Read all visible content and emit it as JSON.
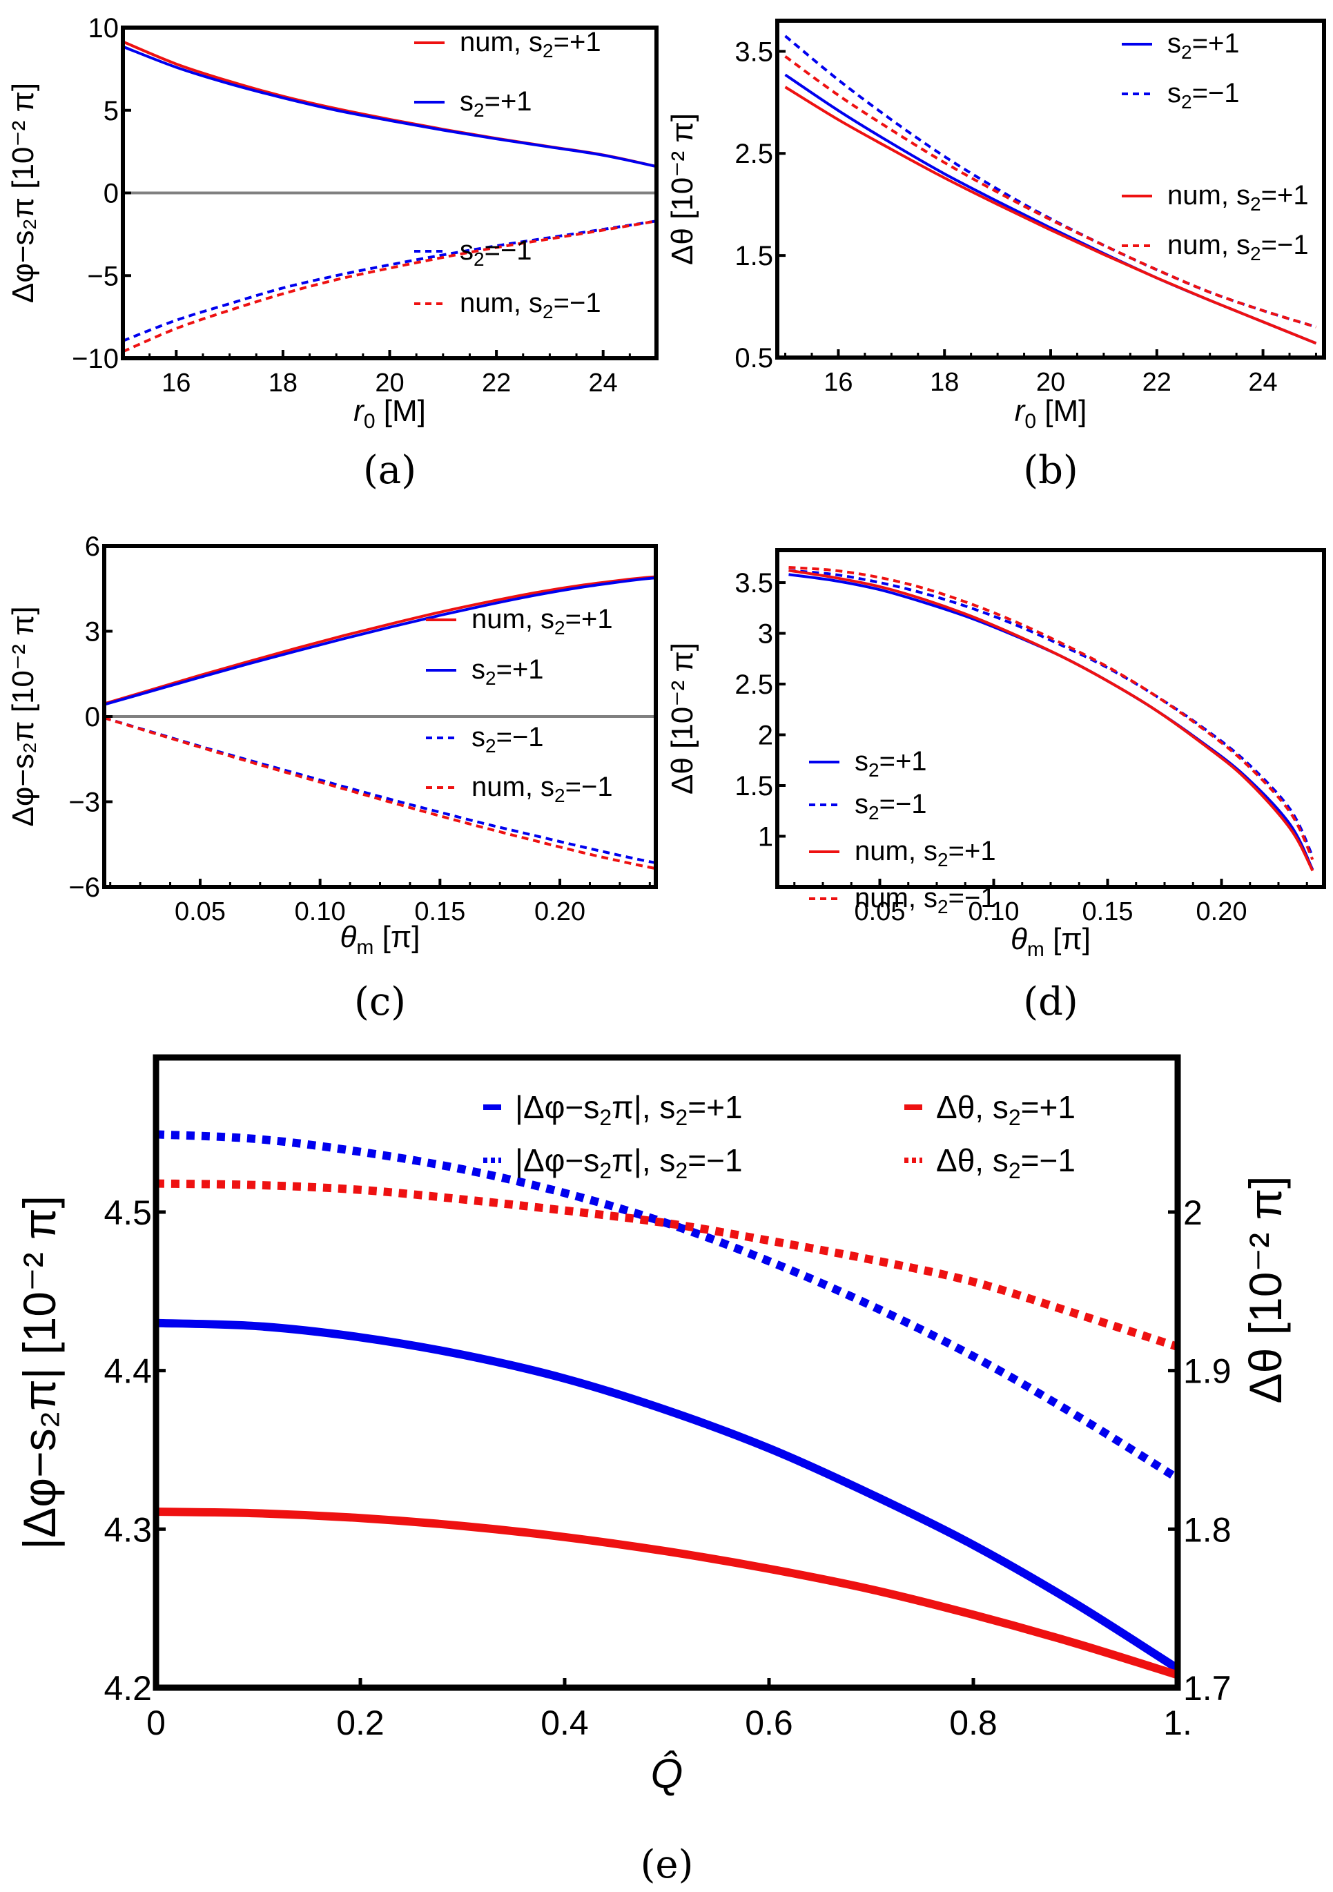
{
  "colors": {
    "blue": "#0000ee",
    "red": "#ee1111",
    "zero_line": "#808080",
    "frame": "#000000"
  },
  "chart_data": [
    {
      "id": "a",
      "type": "line",
      "caption": "(a)",
      "xlabel": "r0 [M]",
      "xlabel_parts": {
        "var": "r",
        "sub": "0",
        "unit": " [M]"
      },
      "ylabel": "Δφ−s2π [10^−2 π]",
      "xlim": [
        15,
        25
      ],
      "ylim": [
        -10,
        10
      ],
      "xticks": [
        16,
        18,
        20,
        22,
        24
      ],
      "xtick_labels": [
        "16",
        "18",
        "20",
        "22",
        "24"
      ],
      "yticks": [
        -10,
        -5,
        0,
        5,
        10
      ],
      "ytick_labels": [
        "−10",
        "−5",
        "0",
        "5",
        "10"
      ],
      "zero_line": true,
      "legend_position": "right",
      "series": [
        {
          "name": "num, s2=+1",
          "color": "red",
          "style": "solid",
          "x": [
            15,
            16,
            17,
            18,
            19,
            20,
            21,
            22,
            23,
            24,
            25
          ],
          "y": [
            9.15,
            7.8,
            6.75,
            5.85,
            5.1,
            4.45,
            3.85,
            3.3,
            2.8,
            2.3,
            1.6
          ]
        },
        {
          "name": "s2=+1",
          "color": "blue",
          "style": "solid",
          "x": [
            15,
            16,
            17,
            18,
            19,
            20,
            21,
            22,
            23,
            24,
            25
          ],
          "y": [
            8.85,
            7.6,
            6.6,
            5.75,
            5.0,
            4.38,
            3.8,
            3.27,
            2.78,
            2.28,
            1.6
          ]
        },
        {
          "name": "s2=−1",
          "color": "blue",
          "style": "dashed",
          "x": [
            15,
            16,
            17,
            18,
            19,
            20,
            21,
            22,
            23,
            24,
            25
          ],
          "y": [
            -8.95,
            -7.7,
            -6.7,
            -5.75,
            -5.0,
            -4.35,
            -3.75,
            -3.2,
            -2.7,
            -2.2,
            -1.7
          ]
        },
        {
          "name": "num, s2=−1",
          "color": "red",
          "style": "dashed",
          "x": [
            15,
            16,
            17,
            18,
            19,
            20,
            21,
            22,
            23,
            24,
            25
          ],
          "y": [
            -9.6,
            -8.2,
            -7.1,
            -6.1,
            -5.25,
            -4.55,
            -3.9,
            -3.3,
            -2.78,
            -2.25,
            -1.7
          ]
        }
      ],
      "legend": [
        {
          "label": "num, s",
          "sub": "2",
          "tail": "=+1",
          "color": "red",
          "style": "solid"
        },
        {
          "label": "s",
          "sub": "2",
          "tail": "=+1",
          "color": "blue",
          "style": "solid"
        },
        {
          "label": "s",
          "sub": "2",
          "tail": "=−1",
          "color": "blue",
          "style": "dashed"
        },
        {
          "label": "num, s",
          "sub": "2",
          "tail": "=−1",
          "color": "red",
          "style": "dashed"
        }
      ]
    },
    {
      "id": "b",
      "type": "line",
      "caption": "(b)",
      "xlabel": "r0 [M]",
      "xlabel_parts": {
        "var": "r",
        "sub": "0",
        "unit": " [M]"
      },
      "ylabel": "Δθ [10^−2 π]",
      "xlim": [
        14.85,
        25.15
      ],
      "ylim": [
        0.5,
        3.8
      ],
      "xticks": [
        16,
        18,
        20,
        22,
        24
      ],
      "xtick_labels": [
        "16",
        "18",
        "20",
        "22",
        "24"
      ],
      "yticks": [
        0.5,
        1.5,
        2.5,
        3.5
      ],
      "ytick_labels": [
        "0.5",
        "1.5",
        "2.5",
        "3.5"
      ],
      "zero_line": false,
      "legend_position": "top-right",
      "series": [
        {
          "name": "s2=+1",
          "color": "blue",
          "style": "solid",
          "x": [
            15,
            16,
            17,
            18,
            19,
            20,
            21,
            22,
            23,
            24,
            25
          ],
          "y": [
            3.27,
            2.92,
            2.6,
            2.3,
            2.03,
            1.77,
            1.52,
            1.28,
            1.06,
            0.85,
            0.64
          ]
        },
        {
          "name": "s2=−1",
          "color": "blue",
          "style": "dashed",
          "x": [
            15,
            16,
            17,
            18,
            19,
            20,
            21,
            22,
            23,
            24,
            25
          ],
          "y": [
            3.65,
            3.22,
            2.83,
            2.47,
            2.15,
            1.86,
            1.6,
            1.36,
            1.14,
            0.96,
            0.8
          ]
        },
        {
          "name": "num, s2=+1",
          "color": "red",
          "style": "solid",
          "x": [
            15,
            16,
            17,
            18,
            19,
            20,
            21,
            22,
            23,
            24,
            25
          ],
          "y": [
            3.15,
            2.83,
            2.54,
            2.26,
            2.0,
            1.75,
            1.51,
            1.28,
            1.06,
            0.85,
            0.64
          ]
        },
        {
          "name": "num, s2=−1",
          "color": "red",
          "style": "dashed",
          "x": [
            15,
            16,
            17,
            18,
            19,
            20,
            21,
            22,
            23,
            24,
            25
          ],
          "y": [
            3.45,
            3.07,
            2.73,
            2.41,
            2.12,
            1.85,
            1.6,
            1.36,
            1.14,
            0.96,
            0.8
          ]
        }
      ],
      "legend": [
        {
          "label": "s",
          "sub": "2",
          "tail": "=+1",
          "color": "blue",
          "style": "solid"
        },
        {
          "label": "s",
          "sub": "2",
          "tail": "=−1",
          "color": "blue",
          "style": "dashed"
        },
        {
          "label": "num, s",
          "sub": "2",
          "tail": "=+1",
          "color": "red",
          "style": "solid"
        },
        {
          "label": "num, s",
          "sub": "2",
          "tail": "=−1",
          "color": "red",
          "style": "dashed"
        }
      ]
    },
    {
      "id": "c",
      "type": "line",
      "caption": "(c)",
      "xlabel": "θm [π]",
      "xlabel_parts": {
        "var": "θ",
        "sub": "m",
        "unit": " [π]"
      },
      "ylabel": "Δφ−s2π [10^−2 π]",
      "xlim": [
        0.01,
        0.24
      ],
      "ylim": [
        -6,
        6
      ],
      "xticks": [
        0.05,
        0.1,
        0.15,
        0.2
      ],
      "xtick_labels": [
        "0.05",
        "0.10",
        "0.15",
        "0.20"
      ],
      "yticks": [
        -6,
        -3,
        0,
        3,
        6
      ],
      "ytick_labels": [
        "−6",
        "−3",
        "0",
        "3",
        "6"
      ],
      "zero_line": true,
      "legend_position": "right",
      "series": [
        {
          "name": "num, s2=+1",
          "color": "red",
          "style": "solid",
          "x": [
            0.01,
            0.03,
            0.05,
            0.07,
            0.09,
            0.11,
            0.13,
            0.15,
            0.17,
            0.19,
            0.21,
            0.23,
            0.24
          ],
          "y": [
            0.45,
            0.95,
            1.45,
            1.93,
            2.4,
            2.85,
            3.27,
            3.67,
            4.03,
            4.36,
            4.63,
            4.84,
            4.92
          ]
        },
        {
          "name": "s2=+1",
          "color": "blue",
          "style": "solid",
          "x": [
            0.01,
            0.03,
            0.05,
            0.07,
            0.09,
            0.11,
            0.13,
            0.15,
            0.17,
            0.19,
            0.21,
            0.23,
            0.24
          ],
          "y": [
            0.42,
            0.9,
            1.38,
            1.85,
            2.3,
            2.74,
            3.16,
            3.56,
            3.93,
            4.27,
            4.56,
            4.79,
            4.88
          ]
        },
        {
          "name": "s2=−1",
          "color": "blue",
          "style": "dashed",
          "x": [
            0.01,
            0.03,
            0.05,
            0.07,
            0.09,
            0.11,
            0.13,
            0.15,
            0.17,
            0.19,
            0.21,
            0.23,
            0.24
          ],
          "y": [
            -0.05,
            -0.55,
            -1.05,
            -1.53,
            -2.0,
            -2.47,
            -2.93,
            -3.37,
            -3.8,
            -4.2,
            -4.6,
            -4.98,
            -5.15
          ]
        },
        {
          "name": "num, s2=−1",
          "color": "red",
          "style": "dashed",
          "x": [
            0.01,
            0.03,
            0.05,
            0.07,
            0.09,
            0.11,
            0.13,
            0.15,
            0.17,
            0.19,
            0.21,
            0.23,
            0.24
          ],
          "y": [
            -0.05,
            -0.57,
            -1.08,
            -1.58,
            -2.07,
            -2.55,
            -3.03,
            -3.5,
            -3.95,
            -4.38,
            -4.8,
            -5.18,
            -5.35
          ]
        }
      ],
      "legend": [
        {
          "label": "num, s",
          "sub": "2",
          "tail": "=+1",
          "color": "red",
          "style": "solid"
        },
        {
          "label": "s",
          "sub": "2",
          "tail": "=+1",
          "color": "blue",
          "style": "solid"
        },
        {
          "label": "s",
          "sub": "2",
          "tail": "=−1",
          "color": "blue",
          "style": "dashed"
        },
        {
          "label": "num, s",
          "sub": "2",
          "tail": "=−1",
          "color": "red",
          "style": "dashed"
        }
      ]
    },
    {
      "id": "d",
      "type": "line",
      "caption": "(d)",
      "xlabel": "θm [π]",
      "xlabel_parts": {
        "var": "θ",
        "sub": "m",
        "unit": " [π]"
      },
      "ylabel": "Δθ [10^−2 π]",
      "xlim": [
        0.005,
        0.245
      ],
      "ylim": [
        0.5,
        3.82
      ],
      "xticks": [
        0.05,
        0.1,
        0.15,
        0.2
      ],
      "xtick_labels": [
        "0.05",
        "0.10",
        "0.15",
        "0.20"
      ],
      "yticks": [
        1,
        1.5,
        2,
        2.5,
        3,
        3.5
      ],
      "ytick_labels": [
        "1",
        "1.5",
        "2",
        "2.5",
        "3",
        "3.5"
      ],
      "zero_line": false,
      "legend_position": "bottom-left",
      "series": [
        {
          "name": "s2=+1",
          "color": "blue",
          "style": "solid",
          "x": [
            0.01,
            0.03,
            0.05,
            0.07,
            0.09,
            0.11,
            0.13,
            0.15,
            0.17,
            0.19,
            0.21,
            0.23,
            0.24
          ],
          "y": [
            3.58,
            3.52,
            3.43,
            3.3,
            3.15,
            2.97,
            2.77,
            2.53,
            2.26,
            1.95,
            1.6,
            1.12,
            0.67
          ]
        },
        {
          "name": "s2=−1",
          "color": "blue",
          "style": "dashed",
          "x": [
            0.01,
            0.03,
            0.05,
            0.07,
            0.09,
            0.11,
            0.13,
            0.15,
            0.17,
            0.19,
            0.21,
            0.23,
            0.24
          ],
          "y": [
            3.62,
            3.58,
            3.5,
            3.39,
            3.25,
            3.08,
            2.88,
            2.66,
            2.4,
            2.1,
            1.75,
            1.27,
            0.8
          ]
        },
        {
          "name": "num, s2=+1",
          "color": "red",
          "style": "solid",
          "x": [
            0.01,
            0.03,
            0.05,
            0.07,
            0.09,
            0.11,
            0.13,
            0.15,
            0.17,
            0.19,
            0.21,
            0.23,
            0.24
          ],
          "y": [
            3.62,
            3.55,
            3.46,
            3.33,
            3.17,
            2.98,
            2.77,
            2.53,
            2.26,
            1.94,
            1.58,
            1.08,
            0.66
          ]
        },
        {
          "name": "num, s2=−1",
          "color": "red",
          "style": "dashed",
          "x": [
            0.01,
            0.03,
            0.05,
            0.07,
            0.09,
            0.11,
            0.13,
            0.15,
            0.17,
            0.19,
            0.21,
            0.23,
            0.24
          ],
          "y": [
            3.65,
            3.62,
            3.55,
            3.44,
            3.29,
            3.11,
            2.9,
            2.67,
            2.4,
            2.09,
            1.73,
            1.24,
            0.77
          ]
        }
      ],
      "legend": [
        {
          "label": "s",
          "sub": "2",
          "tail": "=+1",
          "color": "blue",
          "style": "solid"
        },
        {
          "label": "s",
          "sub": "2",
          "tail": "=−1",
          "color": "blue",
          "style": "dashed"
        },
        {
          "label": "num, s",
          "sub": "2",
          "tail": "=+1",
          "color": "red",
          "style": "solid"
        },
        {
          "label": "num, s",
          "sub": "2",
          "tail": "=−1",
          "color": "red",
          "style": "dashed"
        }
      ]
    },
    {
      "id": "e",
      "type": "line",
      "caption": "(e)",
      "xlabel": "Q̂",
      "ylabel": "|Δφ−s2π| [10^−2 π]",
      "ylabel_right": "Δθ [10^−2 π]",
      "xlim": [
        0,
        1
      ],
      "ylim": [
        4.2,
        4.5975
      ],
      "ylim_right": [
        1.7,
        2.0975
      ],
      "xticks": [
        0,
        0.2,
        0.4,
        0.6,
        0.8,
        1.0
      ],
      "xtick_labels": [
        "0",
        "0.2",
        "0.4",
        "0.6",
        "0.8",
        "1."
      ],
      "yticks": [
        4.2,
        4.3,
        4.4,
        4.5
      ],
      "ytick_labels": [
        "4.2",
        "4.3",
        "4.4",
        "4.5"
      ],
      "yticks_right": [
        1.7,
        1.8,
        1.9,
        2.0
      ],
      "ytick_labels_right": [
        "1.7",
        "1.8",
        "1.9",
        "2"
      ],
      "zero_line": false,
      "legend_position": "top",
      "series": [
        {
          "name": "|Δφ−s2π|, s2=+1",
          "axis": "left",
          "color": "blue",
          "style": "solid",
          "x": [
            0,
            0.1,
            0.2,
            0.3,
            0.4,
            0.5,
            0.6,
            0.7,
            0.8,
            0.9,
            1.0
          ],
          "y": [
            4.43,
            4.428,
            4.421,
            4.41,
            4.395,
            4.375,
            4.351,
            4.322,
            4.29,
            4.253,
            4.212
          ]
        },
        {
          "name": "|Δφ−s2π|, s2=−1",
          "axis": "left",
          "color": "blue",
          "style": "dotted",
          "x": [
            0,
            0.1,
            0.2,
            0.3,
            0.4,
            0.5,
            0.6,
            0.7,
            0.8,
            0.9,
            1.0
          ],
          "y": [
            4.549,
            4.546,
            4.538,
            4.527,
            4.512,
            4.493,
            4.469,
            4.441,
            4.409,
            4.372,
            4.332
          ]
        },
        {
          "name": "Δθ, s2=+1",
          "axis": "right",
          "color": "red",
          "style": "solid",
          "x": [
            0,
            0.1,
            0.2,
            0.3,
            0.4,
            0.5,
            0.6,
            0.7,
            0.8,
            0.9,
            1.0
          ],
          "y": [
            1.811,
            1.81,
            1.807,
            1.802,
            1.795,
            1.786,
            1.775,
            1.762,
            1.746,
            1.728,
            1.708
          ]
        },
        {
          "name": "Δθ, s2=−1",
          "axis": "right",
          "color": "red",
          "style": "dotted",
          "x": [
            0,
            0.1,
            0.2,
            0.3,
            0.4,
            0.5,
            0.6,
            0.7,
            0.8,
            0.9,
            1.0
          ],
          "y": [
            2.018,
            2.017,
            2.014,
            2.008,
            2.001,
            1.993,
            1.982,
            1.97,
            1.956,
            1.936,
            1.915
          ]
        }
      ],
      "legend": [
        {
          "label": "|Δφ−s",
          "sub": "2",
          "tail": "π|, s",
          "sub2": "2",
          "tail2": "=+1",
          "color": "blue",
          "style": "solid"
        },
        {
          "label": "Δθ, s",
          "sub": "2",
          "tail": "=+1",
          "color": "red",
          "style": "solid"
        },
        {
          "label": "|Δφ−s",
          "sub": "2",
          "tail": "π|, s",
          "sub2": "2",
          "tail2": "=−1",
          "color": "blue",
          "style": "dotted"
        },
        {
          "label": "Δθ, s",
          "sub": "2",
          "tail": "=−1",
          "color": "red",
          "style": "dotted"
        }
      ]
    }
  ]
}
